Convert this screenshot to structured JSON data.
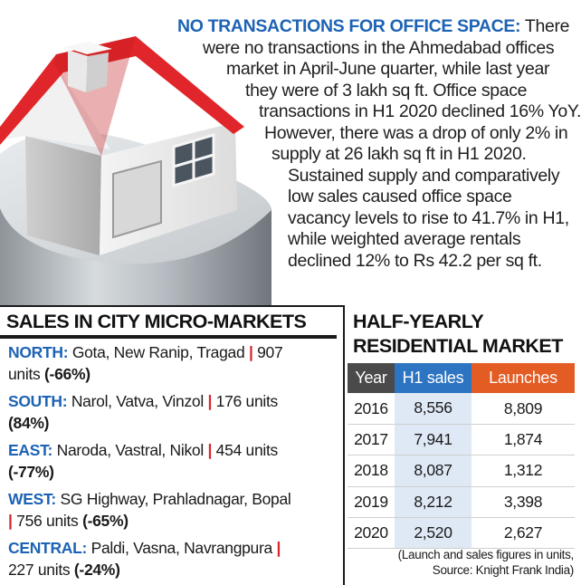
{
  "colors": {
    "accent_blue": "#1d63b5",
    "separator_red": "#d8262b",
    "sales_header": "#2d74c2",
    "launches_header": "#e35c24",
    "year_header": "#4a4a4a"
  },
  "illustration": "house-on-cylinder",
  "office": {
    "heading": "NO TRANSACTIONS FOR OFFICE SPACE:",
    "lines": [
      "There",
      "were no transactions in the Ahmedabad offices",
      "market in April-June quarter, while last year",
      "they were of 3 lakh sq ft. Office space",
      "transactions in H1 2020 declined 16% YoY.",
      "However, there was a drop of only 2% in",
      "supply at 26 lakh sq ft in H1 2020.",
      "Sustained supply and comparatively",
      "low sales caused office space",
      "vacancy levels to rise to 41.7% in H1,",
      "while weighted average rentals",
      "declined 12% to Rs 42.2 per sq ft."
    ]
  },
  "micro_markets": {
    "title": "SALES IN CITY MICRO-MARKETS",
    "items": [
      {
        "label": "NORTH:",
        "text": "Gota, New Ranip, Tragad",
        "sep": "|",
        "units_inline": "907",
        "line2": "units",
        "change": "(-66%)"
      },
      {
        "label": "SOUTH:",
        "text": "Narol, Vatva, Vinzol",
        "sep": "|",
        "units_inline": "176 units",
        "line2": "",
        "change": "(84%)"
      },
      {
        "label": "EAST:",
        "text": "Naroda, Vastral, Nikol",
        "sep": "|",
        "units_inline": "454 units",
        "line2": "",
        "change": "(-77%)"
      },
      {
        "label": "WEST:",
        "text": "SG Highway, Prahladnagar, Bopal",
        "sep": "|",
        "units_inline": "",
        "line2": "756 units",
        "change": "(-65%)"
      },
      {
        "label": "CENTRAL:",
        "text": "Paldi, Vasna, Navrangpura",
        "sep": "|",
        "units_inline": "",
        "line2": "227 units",
        "change": "(-24%)"
      }
    ]
  },
  "residential": {
    "title_line1": "HALF-YEARLY",
    "title_line2": "RESIDENTIAL MARKET",
    "headers": [
      "Year",
      "H1 sales",
      "Launches"
    ],
    "rows": [
      [
        "2016",
        "8,556",
        "8,809"
      ],
      [
        "2017",
        "7,941",
        "1,874"
      ],
      [
        "2018",
        "8,087",
        "1,312"
      ],
      [
        "2019",
        "8,212",
        "3,398"
      ],
      [
        "2020",
        "2,520",
        "2,627"
      ]
    ],
    "note_line1": "(Launch and sales figures in units,",
    "note_line2": "Source: Knight Frank India)"
  }
}
